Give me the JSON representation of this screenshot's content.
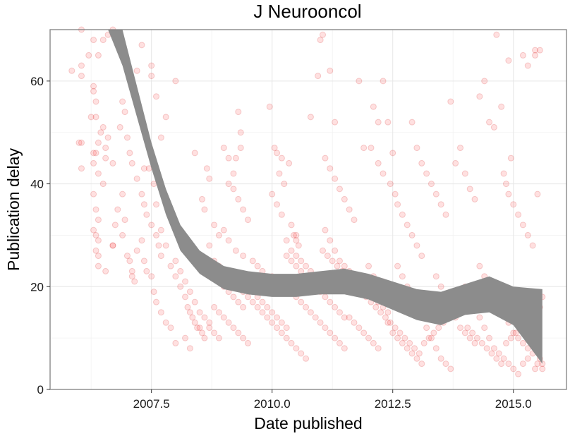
{
  "chart_data": {
    "type": "scatter",
    "title": "J Neurooncol",
    "xlabel": "Date published",
    "ylabel": "Publication delay",
    "xlim": [
      2005.4,
      2016.1
    ],
    "ylim": [
      0,
      70
    ],
    "xticks": [
      2007.5,
      2010.0,
      2012.5,
      2015.0
    ],
    "xtick_labels": [
      "2007.5",
      "2010.0",
      "2012.5",
      "2015.0"
    ],
    "yticks": [
      0,
      20,
      40,
      60
    ],
    "ytick_labels": [
      "0",
      "20",
      "40",
      "60"
    ],
    "grid": true,
    "point_color": "#ff0000",
    "point_alpha": 0.12,
    "band_color": "#8c8c8c",
    "points": [
      [
        5.85,
        62
      ],
      [
        6.05,
        70
      ],
      [
        6.05,
        63
      ],
      [
        6.05,
        61
      ],
      [
        6.0,
        48
      ],
      [
        6.05,
        48
      ],
      [
        6.05,
        43
      ],
      [
        6.2,
        65
      ],
      [
        6.3,
        68
      ],
      [
        6.4,
        65
      ],
      [
        6.5,
        68
      ],
      [
        6.6,
        69
      ],
      [
        6.7,
        70
      ],
      [
        6.85,
        68
      ],
      [
        6.3,
        59
      ],
      [
        6.3,
        58
      ],
      [
        6.35,
        56
      ],
      [
        6.25,
        53
      ],
      [
        6.35,
        53
      ],
      [
        6.5,
        51
      ],
      [
        6.45,
        50
      ],
      [
        6.6,
        49
      ],
      [
        6.4,
        48
      ],
      [
        6.55,
        47
      ],
      [
        6.3,
        46
      ],
      [
        6.35,
        46
      ],
      [
        6.3,
        44
      ],
      [
        6.55,
        45
      ],
      [
        6.7,
        44
      ],
      [
        6.4,
        42
      ],
      [
        6.5,
        40
      ],
      [
        6.3,
        38
      ],
      [
        6.35,
        35
      ],
      [
        6.4,
        33
      ],
      [
        6.3,
        31
      ],
      [
        6.35,
        30
      ],
      [
        6.4,
        29
      ],
      [
        6.35,
        27
      ],
      [
        6.4,
        26
      ],
      [
        6.4,
        24
      ],
      [
        6.55,
        23
      ],
      [
        6.7,
        28
      ],
      [
        6.7,
        28
      ],
      [
        6.75,
        32
      ],
      [
        6.8,
        35
      ],
      [
        6.9,
        38
      ],
      [
        6.95,
        33
      ],
      [
        6.9,
        30
      ],
      [
        7.0,
        26
      ],
      [
        7.05,
        25
      ],
      [
        7.1,
        22
      ],
      [
        7.15,
        21
      ],
      [
        7.1,
        23
      ],
      [
        7.2,
        27
      ],
      [
        7.3,
        29
      ],
      [
        7.35,
        25
      ],
      [
        7.4,
        23
      ],
      [
        7.5,
        22
      ],
      [
        7.55,
        19
      ],
      [
        7.6,
        17
      ],
      [
        7.7,
        15
      ],
      [
        7.8,
        13
      ],
      [
        7.9,
        12
      ],
      [
        7.2,
        62
      ],
      [
        7.3,
        67
      ],
      [
        7.5,
        63
      ],
      [
        7.5,
        61
      ],
      [
        7.6,
        57
      ],
      [
        7.8,
        53
      ],
      [
        7.7,
        49
      ],
      [
        7.45,
        43
      ],
      [
        7.35,
        43
      ],
      [
        7.55,
        40
      ],
      [
        7.6,
        36
      ],
      [
        7.7,
        31
      ],
      [
        7.8,
        28
      ],
      [
        8.0,
        60
      ],
      [
        6.9,
        56
      ],
      [
        6.95,
        54
      ],
      [
        6.85,
        51
      ],
      [
        7.0,
        49
      ],
      [
        7.05,
        46
      ],
      [
        7.1,
        44
      ],
      [
        7.2,
        41
      ],
      [
        7.3,
        38
      ],
      [
        7.35,
        36
      ],
      [
        7.4,
        34
      ],
      [
        7.5,
        32
      ],
      [
        7.6,
        30
      ],
      [
        7.65,
        28
      ],
      [
        7.7,
        26
      ],
      [
        7.9,
        24
      ],
      [
        8.0,
        22
      ],
      [
        8.1,
        20
      ],
      [
        8.2,
        18
      ],
      [
        8.25,
        16
      ],
      [
        8.3,
        15
      ],
      [
        8.35,
        14
      ],
      [
        8.4,
        13
      ],
      [
        8.45,
        12
      ],
      [
        8.5,
        12
      ],
      [
        8.55,
        11
      ],
      [
        8.6,
        10
      ],
      [
        8.2,
        10
      ],
      [
        8.0,
        9
      ],
      [
        8.3,
        8
      ],
      [
        8.4,
        46
      ],
      [
        8.65,
        43
      ],
      [
        8.7,
        41
      ],
      [
        8.55,
        37
      ],
      [
        8.6,
        35
      ],
      [
        8.8,
        32
      ],
      [
        8.9,
        30
      ],
      [
        8.7,
        28
      ],
      [
        9.0,
        47
      ],
      [
        9.1,
        45
      ],
      [
        9.2,
        42
      ],
      [
        9.25,
        45
      ],
      [
        9.3,
        54
      ],
      [
        9.35,
        50
      ],
      [
        9.35,
        47
      ],
      [
        9.1,
        40
      ],
      [
        9.2,
        39
      ],
      [
        9.3,
        37
      ],
      [
        9.4,
        35
      ],
      [
        9.5,
        33
      ],
      [
        9.0,
        31
      ],
      [
        9.1,
        29
      ],
      [
        9.25,
        27
      ],
      [
        9.4,
        26
      ],
      [
        9.6,
        25
      ],
      [
        9.7,
        24
      ],
      [
        9.8,
        23
      ],
      [
        9.9,
        22
      ],
      [
        10.0,
        22
      ],
      [
        10.1,
        21
      ],
      [
        9.5,
        20
      ],
      [
        9.6,
        19
      ],
      [
        9.7,
        18
      ],
      [
        9.8,
        17
      ],
      [
        9.9,
        16
      ],
      [
        10.0,
        15
      ],
      [
        10.1,
        14
      ],
      [
        10.2,
        13
      ],
      [
        10.3,
        12
      ],
      [
        8.8,
        16
      ],
      [
        8.9,
        15
      ],
      [
        9.0,
        14
      ],
      [
        9.1,
        13
      ],
      [
        9.2,
        12
      ],
      [
        9.3,
        11
      ],
      [
        9.4,
        10
      ],
      [
        9.5,
        9
      ],
      [
        8.7,
        12
      ],
      [
        8.8,
        11
      ],
      [
        8.9,
        10
      ],
      [
        9.0,
        20
      ],
      [
        9.1,
        19
      ],
      [
        9.2,
        18
      ],
      [
        9.3,
        17
      ],
      [
        9.4,
        16
      ],
      [
        9.95,
        55
      ],
      [
        10.05,
        47
      ],
      [
        10.1,
        46
      ],
      [
        10.2,
        45
      ],
      [
        10.35,
        44
      ],
      [
        10.15,
        42
      ],
      [
        10.25,
        40
      ],
      [
        10.0,
        38
      ],
      [
        10.1,
        36
      ],
      [
        10.2,
        34
      ],
      [
        10.4,
        32
      ],
      [
        10.5,
        30
      ],
      [
        10.3,
        29
      ],
      [
        10.4,
        27
      ],
      [
        10.5,
        26
      ],
      [
        10.6,
        25
      ],
      [
        10.7,
        24
      ],
      [
        10.8,
        23
      ],
      [
        10.9,
        22
      ],
      [
        10.95,
        21
      ],
      [
        11.0,
        20
      ],
      [
        10.8,
        53
      ],
      [
        10.95,
        61
      ],
      [
        11.0,
        68
      ],
      [
        11.05,
        69
      ],
      [
        11.2,
        62
      ],
      [
        11.3,
        52
      ],
      [
        11.1,
        45
      ],
      [
        11.2,
        43
      ],
      [
        11.3,
        41
      ],
      [
        11.4,
        39
      ],
      [
        11.5,
        37
      ],
      [
        11.6,
        35
      ],
      [
        11.7,
        33
      ],
      [
        11.1,
        31
      ],
      [
        11.2,
        29
      ],
      [
        11.3,
        27
      ],
      [
        11.4,
        25
      ],
      [
        11.5,
        24
      ],
      [
        11.6,
        23
      ],
      [
        11.7,
        22
      ],
      [
        11.8,
        21
      ],
      [
        11.9,
        20
      ],
      [
        12.0,
        19
      ],
      [
        12.1,
        18
      ],
      [
        12.2,
        17
      ],
      [
        12.3,
        16
      ],
      [
        12.4,
        15
      ],
      [
        10.5,
        18
      ],
      [
        10.6,
        17
      ],
      [
        10.7,
        16
      ],
      [
        10.8,
        15
      ],
      [
        10.9,
        14
      ],
      [
        11.0,
        13
      ],
      [
        11.1,
        12
      ],
      [
        11.2,
        11
      ],
      [
        11.3,
        10
      ],
      [
        11.4,
        9
      ],
      [
        11.5,
        8
      ],
      [
        10.3,
        10
      ],
      [
        10.4,
        9
      ],
      [
        10.5,
        8
      ],
      [
        10.6,
        7
      ],
      [
        10.7,
        6
      ],
      [
        11.8,
        60
      ],
      [
        11.9,
        47
      ],
      [
        12.05,
        47
      ],
      [
        12.1,
        55
      ],
      [
        12.2,
        52
      ],
      [
        12.3,
        60
      ],
      [
        12.4,
        52
      ],
      [
        12.5,
        46
      ],
      [
        12.2,
        44
      ],
      [
        12.3,
        42
      ],
      [
        12.45,
        40
      ],
      [
        12.55,
        38
      ],
      [
        12.6,
        36
      ],
      [
        12.7,
        34
      ],
      [
        12.8,
        32
      ],
      [
        12.9,
        30
      ],
      [
        13.0,
        28
      ],
      [
        13.1,
        26
      ],
      [
        12.6,
        24
      ],
      [
        12.7,
        22
      ],
      [
        12.8,
        20
      ],
      [
        12.9,
        18
      ],
      [
        13.0,
        16
      ],
      [
        13.1,
        14
      ],
      [
        13.2,
        12
      ],
      [
        13.3,
        10
      ],
      [
        13.4,
        8
      ],
      [
        13.5,
        6
      ],
      [
        13.6,
        5
      ],
      [
        13.7,
        4
      ],
      [
        12.9,
        52
      ],
      [
        13.0,
        47
      ],
      [
        13.1,
        44
      ],
      [
        13.2,
        42
      ],
      [
        13.3,
        40
      ],
      [
        13.4,
        38
      ],
      [
        13.5,
        36
      ],
      [
        13.6,
        34
      ],
      [
        13.7,
        56
      ],
      [
        13.8,
        44
      ],
      [
        13.9,
        47
      ],
      [
        14.0,
        42
      ],
      [
        14.1,
        39
      ],
      [
        14.2,
        37
      ],
      [
        14.3,
        57
      ],
      [
        14.4,
        60
      ],
      [
        14.5,
        52
      ],
      [
        14.6,
        51
      ],
      [
        14.65,
        69
      ],
      [
        14.75,
        55
      ],
      [
        14.9,
        64
      ],
      [
        14.95,
        45
      ],
      [
        14.8,
        42
      ],
      [
        14.85,
        40
      ],
      [
        14.9,
        38
      ],
      [
        15.0,
        36
      ],
      [
        15.1,
        34
      ],
      [
        15.2,
        32
      ],
      [
        15.3,
        30
      ],
      [
        15.4,
        28
      ],
      [
        15.5,
        38
      ],
      [
        15.45,
        65
      ],
      [
        15.55,
        66
      ],
      [
        15.45,
        66
      ],
      [
        15.2,
        65
      ],
      [
        15.3,
        63
      ],
      [
        14.0,
        20
      ],
      [
        14.1,
        18
      ],
      [
        14.2,
        16
      ],
      [
        14.3,
        14
      ],
      [
        14.4,
        12
      ],
      [
        14.5,
        10
      ],
      [
        14.6,
        8
      ],
      [
        14.7,
        7
      ],
      [
        14.8,
        6
      ],
      [
        14.9,
        5
      ],
      [
        15.0,
        4
      ],
      [
        15.1,
        3
      ],
      [
        15.2,
        5
      ],
      [
        15.3,
        6
      ],
      [
        15.4,
        7
      ],
      [
        15.5,
        8
      ],
      [
        15.6,
        5
      ],
      [
        13.4,
        22
      ],
      [
        13.5,
        20
      ],
      [
        13.6,
        18
      ],
      [
        13.7,
        16
      ],
      [
        13.8,
        14
      ],
      [
        13.9,
        12
      ],
      [
        14.0,
        11
      ],
      [
        14.1,
        10
      ],
      [
        14.2,
        9
      ],
      [
        14.3,
        24
      ],
      [
        14.4,
        22
      ],
      [
        14.5,
        21
      ],
      [
        14.6,
        19
      ],
      [
        14.7,
        17
      ],
      [
        14.8,
        15
      ],
      [
        14.9,
        13
      ],
      [
        15.0,
        11
      ],
      [
        15.1,
        10
      ],
      [
        15.2,
        9
      ],
      [
        15.3,
        8
      ],
      [
        15.4,
        12
      ],
      [
        15.5,
        14
      ],
      [
        15.55,
        16
      ],
      [
        15.6,
        18
      ],
      [
        12.0,
        24
      ],
      [
        12.1,
        22
      ],
      [
        12.2,
        20
      ],
      [
        12.3,
        21
      ],
      [
        12.4,
        13
      ],
      [
        12.5,
        11
      ],
      [
        12.6,
        10
      ],
      [
        12.7,
        9
      ],
      [
        12.8,
        8
      ],
      [
        12.9,
        7
      ],
      [
        13.0,
        6
      ],
      [
        13.1,
        5
      ],
      [
        11.6,
        14
      ],
      [
        11.7,
        13
      ],
      [
        11.8,
        12
      ],
      [
        11.9,
        11
      ],
      [
        12.0,
        10
      ],
      [
        12.1,
        9
      ],
      [
        12.2,
        8
      ],
      [
        8.0,
        25
      ],
      [
        8.1,
        23
      ],
      [
        8.2,
        21
      ],
      [
        8.3,
        19
      ],
      [
        8.4,
        17
      ],
      [
        8.5,
        15
      ],
      [
        8.6,
        14
      ],
      [
        8.7,
        13
      ],
      [
        8.8,
        25
      ],
      [
        8.9,
        24
      ],
      [
        9.0,
        23
      ],
      [
        9.1,
        22
      ],
      [
        9.2,
        21
      ],
      [
        9.3,
        20
      ],
      [
        9.4,
        19
      ],
      [
        9.5,
        18
      ],
      [
        9.6,
        17
      ],
      [
        9.7,
        16
      ],
      [
        9.8,
        15
      ],
      [
        9.9,
        14
      ],
      [
        10.0,
        13
      ],
      [
        10.1,
        12
      ],
      [
        10.2,
        11
      ],
      [
        10.3,
        26
      ],
      [
        10.4,
        25
      ],
      [
        10.5,
        24
      ],
      [
        10.6,
        23
      ],
      [
        10.7,
        22
      ],
      [
        10.8,
        21
      ],
      [
        10.9,
        20
      ],
      [
        11.0,
        19
      ],
      [
        11.1,
        18
      ],
      [
        11.2,
        17
      ],
      [
        11.3,
        16
      ],
      [
        11.4,
        15
      ],
      [
        11.5,
        14
      ],
      [
        10.45,
        30
      ],
      [
        10.5,
        29
      ],
      [
        10.55,
        28
      ],
      [
        11.05,
        27
      ],
      [
        11.15,
        26
      ],
      [
        11.25,
        25
      ],
      [
        11.35,
        24
      ],
      [
        11.45,
        23
      ],
      [
        11.55,
        22
      ],
      [
        11.65,
        21
      ],
      [
        11.75,
        20
      ],
      [
        11.85,
        19
      ],
      [
        11.95,
        18
      ],
      [
        12.05,
        17
      ],
      [
        12.15,
        16
      ],
      [
        12.25,
        15
      ],
      [
        12.35,
        14
      ],
      [
        12.45,
        13
      ],
      [
        12.55,
        12
      ],
      [
        12.65,
        11
      ],
      [
        12.75,
        10
      ],
      [
        12.85,
        9
      ],
      [
        12.95,
        8
      ],
      [
        13.05,
        7
      ],
      [
        13.15,
        9
      ],
      [
        13.25,
        10
      ],
      [
        13.35,
        11
      ],
      [
        13.45,
        12
      ],
      [
        13.55,
        13
      ],
      [
        13.65,
        14
      ],
      [
        13.75,
        15
      ],
      [
        13.85,
        16
      ],
      [
        13.95,
        17
      ],
      [
        14.05,
        12
      ],
      [
        14.15,
        11
      ],
      [
        14.25,
        10
      ],
      [
        14.35,
        9
      ],
      [
        14.45,
        8
      ],
      [
        14.55,
        7
      ],
      [
        14.65,
        6
      ],
      [
        14.75,
        5
      ],
      [
        14.85,
        9
      ],
      [
        14.95,
        10
      ],
      [
        15.05,
        11
      ],
      [
        15.15,
        12
      ],
      [
        15.25,
        13
      ],
      [
        15.35,
        14
      ],
      [
        15.45,
        15
      ],
      [
        15.55,
        6
      ],
      [
        15.6,
        4
      ],
      [
        15.45,
        4
      ],
      [
        15.5,
        5
      ]
    ],
    "smooth_band": {
      "x": [
        6.6,
        6.9,
        7.2,
        7.5,
        7.8,
        8.1,
        8.5,
        9.0,
        9.5,
        10.0,
        10.5,
        11.0,
        11.5,
        12.0,
        12.5,
        13.0,
        13.5,
        14.0,
        14.5,
        15.0,
        15.6
      ],
      "upper": [
        78,
        70,
        59,
        48,
        39,
        32,
        27,
        24,
        23,
        22.5,
        22.5,
        23,
        23.5,
        22.5,
        21,
        19.5,
        19,
        20.5,
        22,
        20,
        19.5
      ],
      "lower": [
        70,
        63,
        53,
        43,
        34,
        27,
        22.5,
        19.5,
        18.5,
        18,
        18,
        18.5,
        18.5,
        17.5,
        15.5,
        13.5,
        12.5,
        14.5,
        15,
        12.5,
        5
      ]
    }
  }
}
